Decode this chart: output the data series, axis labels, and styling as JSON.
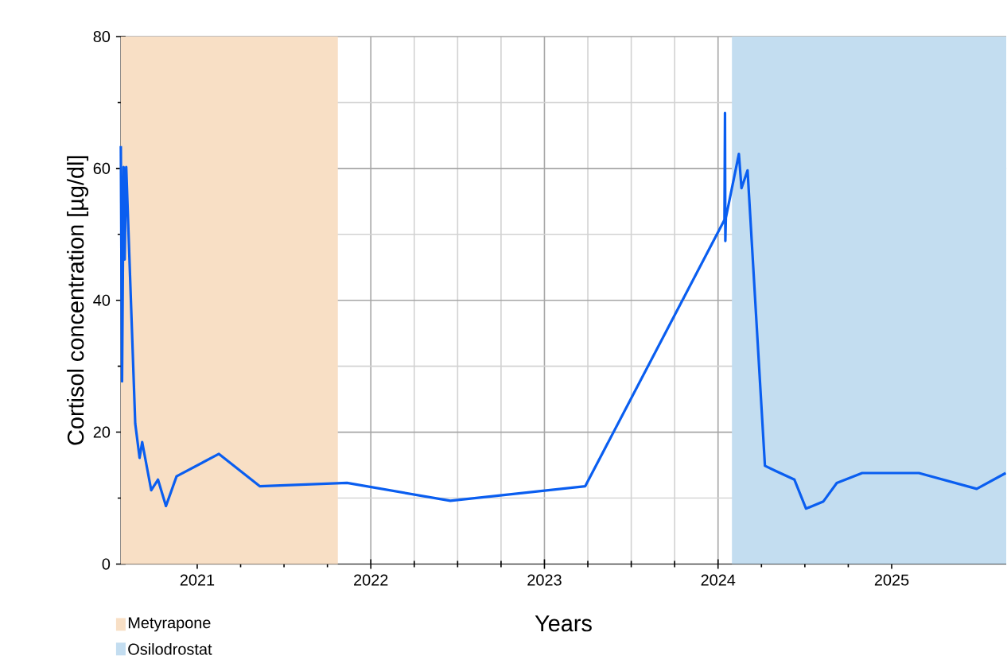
{
  "chart_data": {
    "type": "line",
    "xlabel": "Years",
    "ylabel": "Cortisol concentration [µg/dl]",
    "x": [
      2020.56,
      2020.567,
      2020.576,
      2020.582,
      2020.591,
      2020.643,
      2020.668,
      2020.683,
      2020.735,
      2020.774,
      2020.82,
      2020.881,
      2021.125,
      2021.36,
      2021.863,
      2022.458,
      2023.235,
      2024.037,
      2024.04,
      2024.042,
      2024.045,
      2024.12,
      2024.135,
      2024.17,
      2024.27,
      2024.333,
      2024.44,
      2024.507,
      2024.607,
      2024.684,
      2024.83,
      2025.157,
      2025.49,
      2025.657
    ],
    "series": [
      {
        "color": "#0a5ef0",
        "values": [
          63.4,
          27.7,
          60.2,
          46.2,
          60.2,
          21.3,
          16.1,
          18.5,
          11.2,
          12.8,
          8.8,
          13.3,
          16.7,
          11.8,
          12.3,
          9.6,
          11.8,
          52.2,
          68.4,
          49.0,
          52.5,
          62.2,
          57.0,
          59.7,
          14.9,
          14.1,
          12.8,
          8.4,
          9.5,
          12.3,
          13.8,
          13.8,
          11.4,
          13.8
        ]
      }
    ],
    "xlim": [
      2020.56,
      2025.66
    ],
    "ylim": [
      0,
      80
    ],
    "xticks": [
      2021,
      2022,
      2023,
      2024,
      2025
    ],
    "yticks": [
      0,
      20,
      40,
      60,
      80
    ],
    "grid": true,
    "legend": "bottom left",
    "bands": [
      {
        "axis": "x",
        "from": 2020.56,
        "to": 2021.81,
        "label": "Metyrapone",
        "color": "#f8dfc5"
      },
      {
        "axis": "x",
        "from": 2024.08,
        "to": 2025.66,
        "label": "Osilodrostat",
        "color": "#c3ddf0"
      }
    ]
  }
}
